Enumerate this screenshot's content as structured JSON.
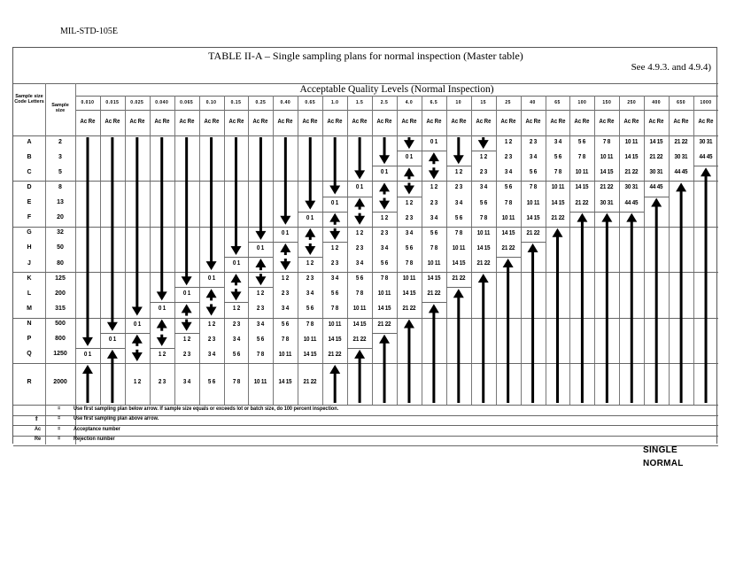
{
  "document": {
    "id": "MIL-STD-105E",
    "table_title": "TABLE II-A – Single sampling plans for normal inspection (Master table)",
    "reference": "See 4.9.3. and 4.9.4)",
    "aql_heading": "Acceptable Quality Levels (Normal Inspection)",
    "col_code_letters": "Sample size Code Letters",
    "col_sample_size": "Sample size",
    "ac_re_label": "Ac Re",
    "footer_line1": "SINGLE",
    "footer_line2": "NORMAL"
  },
  "table": {
    "aql_levels": [
      "0.010",
      "0.015",
      "0.025",
      "0.040",
      "0.065",
      "0.10",
      "0.15",
      "0.25",
      "0.40",
      "0.65",
      "1.0",
      "1.5",
      "2.5",
      "4.0",
      "6.5",
      "10",
      "15",
      "25",
      "40",
      "65",
      "100",
      "150",
      "250",
      "400",
      "650",
      "1000"
    ],
    "rows": [
      {
        "code": "A",
        "size": "2",
        "cells": [
          "down",
          "down",
          "down",
          "down",
          "down",
          "down",
          "down",
          "down",
          "down",
          "down",
          "down",
          "down",
          "down",
          "down",
          "0 1",
          "down",
          "down",
          "1 2",
          "2 3",
          "3 4",
          "5 6",
          "7 8",
          "10 11",
          "14 15",
          "21 22",
          "30 31"
        ]
      },
      {
        "code": "B",
        "size": "3",
        "cells": [
          "down",
          "down",
          "down",
          "down",
          "down",
          "down",
          "down",
          "down",
          "down",
          "down",
          "down",
          "down",
          "down",
          "0 1",
          "up",
          "down",
          "1 2",
          "2 3",
          "3 4",
          "5 6",
          "7 8",
          "10 11",
          "14 15",
          "21 22",
          "30 31",
          "44 45"
        ]
      },
      {
        "code": "C",
        "size": "5",
        "cells": [
          "down",
          "down",
          "down",
          "down",
          "down",
          "down",
          "down",
          "down",
          "down",
          "down",
          "down",
          "down",
          "0 1",
          "up",
          "down",
          "1 2",
          "2 3",
          "3 4",
          "5 6",
          "7 8",
          "10 11",
          "14 15",
          "21 22",
          "30 31",
          "44 45",
          "up"
        ]
      },
      {
        "code": "D",
        "size": "8",
        "cells": [
          "down",
          "down",
          "down",
          "down",
          "down",
          "down",
          "down",
          "down",
          "down",
          "down",
          "down",
          "0 1",
          "up",
          "down",
          "1 2",
          "2 3",
          "3 4",
          "5 6",
          "7 8",
          "10 11",
          "14 15",
          "21 22",
          "30 31",
          "44 45",
          "up",
          "up"
        ]
      },
      {
        "code": "E",
        "size": "13",
        "cells": [
          "down",
          "down",
          "down",
          "down",
          "down",
          "down",
          "down",
          "down",
          "down",
          "down",
          "0 1",
          "up",
          "down",
          "1 2",
          "2 3",
          "3 4",
          "5 6",
          "7 8",
          "10 11",
          "14 15",
          "21 22",
          "30 31",
          "44 45",
          "up",
          "up",
          "up"
        ]
      },
      {
        "code": "F",
        "size": "20",
        "cells": [
          "down",
          "down",
          "down",
          "down",
          "down",
          "down",
          "down",
          "down",
          "down",
          "0 1",
          "up",
          "down",
          "1 2",
          "2 3",
          "3 4",
          "5 6",
          "7 8",
          "10 11",
          "14 15",
          "21 22",
          "up",
          "up",
          "up",
          "up",
          "up",
          "up"
        ]
      },
      {
        "code": "G",
        "size": "32",
        "cells": [
          "down",
          "down",
          "down",
          "down",
          "down",
          "down",
          "down",
          "down",
          "0 1",
          "up",
          "down",
          "1 2",
          "2 3",
          "3 4",
          "5 6",
          "7 8",
          "10 11",
          "14 15",
          "21 22",
          "up",
          "up",
          "up",
          "up",
          "up",
          "up",
          "up"
        ]
      },
      {
        "code": "H",
        "size": "50",
        "cells": [
          "down",
          "down",
          "down",
          "down",
          "down",
          "down",
          "down",
          "0 1",
          "up",
          "down",
          "1 2",
          "2 3",
          "3 4",
          "5 6",
          "7 8",
          "10 11",
          "14 15",
          "21 22",
          "up",
          "up",
          "up",
          "up",
          "up",
          "up",
          "up",
          "up"
        ]
      },
      {
        "code": "J",
        "size": "80",
        "cells": [
          "down",
          "down",
          "down",
          "down",
          "down",
          "down",
          "0 1",
          "up",
          "down",
          "1 2",
          "2 3",
          "3 4",
          "5 6",
          "7 8",
          "10 11",
          "14 15",
          "21 22",
          "up",
          "up",
          "up",
          "up",
          "up",
          "up",
          "up",
          "up",
          "up"
        ]
      },
      {
        "code": "K",
        "size": "125",
        "cells": [
          "down",
          "down",
          "down",
          "down",
          "down",
          "0 1",
          "up",
          "down",
          "1 2",
          "2 3",
          "3 4",
          "5 6",
          "7 8",
          "10 11",
          "14 15",
          "21 22",
          "up",
          "up",
          "up",
          "up",
          "up",
          "up",
          "up",
          "up",
          "up",
          "up"
        ]
      },
      {
        "code": "L",
        "size": "200",
        "cells": [
          "down",
          "down",
          "down",
          "down",
          "0 1",
          "up",
          "down",
          "1 2",
          "2 3",
          "3 4",
          "5 6",
          "7 8",
          "10 11",
          "14 15",
          "21 22",
          "up",
          "up",
          "up",
          "up",
          "up",
          "up",
          "up",
          "up",
          "up",
          "up",
          "up"
        ]
      },
      {
        "code": "M",
        "size": "315",
        "cells": [
          "down",
          "down",
          "down",
          "0 1",
          "up",
          "down",
          "1 2",
          "2 3",
          "3 4",
          "5 6",
          "7 8",
          "10 11",
          "14 15",
          "21 22",
          "up",
          "up",
          "up",
          "up",
          "up",
          "up",
          "up",
          "up",
          "up",
          "up",
          "up",
          "up"
        ]
      },
      {
        "code": "N",
        "size": "500",
        "cells": [
          "down",
          "down",
          "0 1",
          "up",
          "down",
          "1 2",
          "2 3",
          "3 4",
          "5 6",
          "7 8",
          "10 11",
          "14 15",
          "21 22",
          "up",
          "up",
          "up",
          "up",
          "up",
          "up",
          "up",
          "up",
          "up",
          "up",
          "up",
          "up",
          "up"
        ]
      },
      {
        "code": "P",
        "size": "800",
        "cells": [
          "down",
          "0 1",
          "up",
          "down",
          "1 2",
          "2 3",
          "3 4",
          "5 6",
          "7 8",
          "10 11",
          "14 15",
          "21 22",
          "up",
          "up",
          "up",
          "up",
          "up",
          "up",
          "up",
          "up",
          "up",
          "up",
          "up",
          "up",
          "up",
          "up"
        ]
      },
      {
        "code": "Q",
        "size": "1250",
        "cells": [
          "0 1",
          "up",
          "down",
          "1 2",
          "2 3",
          "3 4",
          "5 6",
          "7 8",
          "10 11",
          "14 15",
          "21 22",
          "up",
          "up",
          "up",
          "up",
          "up",
          "up",
          "up",
          "up",
          "up",
          "up",
          "up",
          "up",
          "up",
          "up",
          "up"
        ]
      },
      {
        "code": "R",
        "size": "2000",
        "cells": [
          "up",
          "up",
          "1 2",
          "2 3",
          "3 4",
          "5 6",
          "7 8",
          "10 11",
          "14 15",
          "21 22",
          "up",
          "up",
          "up",
          "up",
          "up",
          "up",
          "up",
          "up",
          "up",
          "up",
          "up",
          "up",
          "up",
          "up",
          "up",
          "up"
        ]
      }
    ]
  },
  "legend": [
    {
      "symbol": "down-arrow",
      "eq": "=",
      "text": "Use first sampling plan below arrow.  If sample size equals or exceeds lot or batch size, do 100 percent inspection."
    },
    {
      "symbol": "⇑",
      "eq": "=",
      "text": "Use first sampling plan above arrow."
    },
    {
      "symbol": "Ac",
      "eq": "=",
      "text": "Acceptance number"
    },
    {
      "symbol": "Re",
      "eq": "=",
      "text": "Rejection number"
    }
  ]
}
